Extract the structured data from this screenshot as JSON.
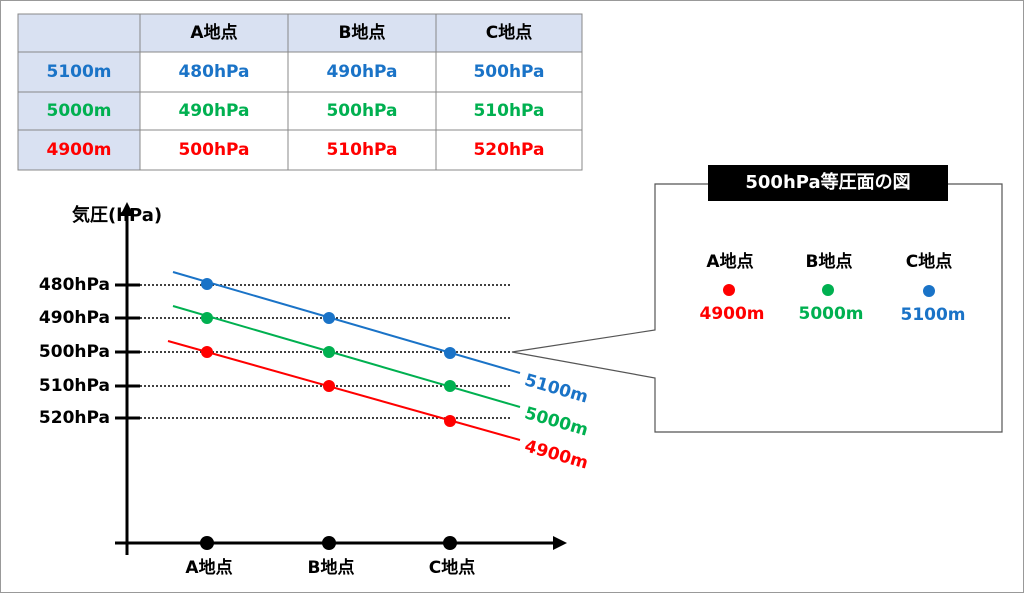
{
  "table": {
    "columns": [
      "A地点",
      "B地点",
      "C地点"
    ],
    "rows": [
      {
        "label": "5100m",
        "cells": [
          "480hPa",
          "490hPa",
          "500hPa"
        ]
      },
      {
        "label": "5000m",
        "cells": [
          "490hPa",
          "500hPa",
          "510hPa"
        ]
      },
      {
        "label": "4900m",
        "cells": [
          "500hPa",
          "510hPa",
          "520hPa"
        ]
      }
    ]
  },
  "chart": {
    "y_axis_label": "気圧(hPa)",
    "y_labels": [
      "480hPa",
      "490hPa",
      "500hPa",
      "510hPa",
      "520hPa"
    ],
    "x_labels": [
      "A地点",
      "B地点",
      "C地点"
    ],
    "line_labels": [
      "5100m",
      "5000m",
      "4900m"
    ]
  },
  "callout": {
    "title": "500hPa等圧面の図",
    "points": [
      {
        "label": "A地点",
        "height": "4900m"
      },
      {
        "label": "B地点",
        "height": "5000m"
      },
      {
        "label": "C地点",
        "height": "5100m"
      }
    ]
  }
}
